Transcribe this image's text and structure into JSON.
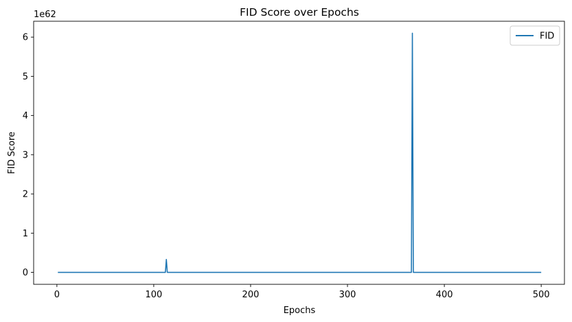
{
  "chart_data": {
    "type": "line",
    "title": "FID Score over Epochs",
    "xlabel": "Epochs",
    "ylabel": "FID Score",
    "y_offset_text": "1e62",
    "y_scale_factor": 1e+62,
    "xlim": [
      -24,
      524
    ],
    "ylim": [
      -0.305,
      6.405
    ],
    "x_ticks": [
      0,
      100,
      200,
      300,
      400,
      500
    ],
    "y_ticks": [
      0,
      1,
      2,
      3,
      4,
      5,
      6
    ],
    "grid": false,
    "legend_position": "upper right",
    "series": [
      {
        "name": "FID",
        "color": "#1f77b4",
        "points": [
          [
            1,
            0
          ],
          [
            112,
            0
          ],
          [
            113,
            0.33
          ],
          [
            114,
            0
          ],
          [
            366,
            0
          ],
          [
            367,
            6.1
          ],
          [
            368,
            0
          ],
          [
            500,
            0
          ]
        ]
      }
    ]
  }
}
